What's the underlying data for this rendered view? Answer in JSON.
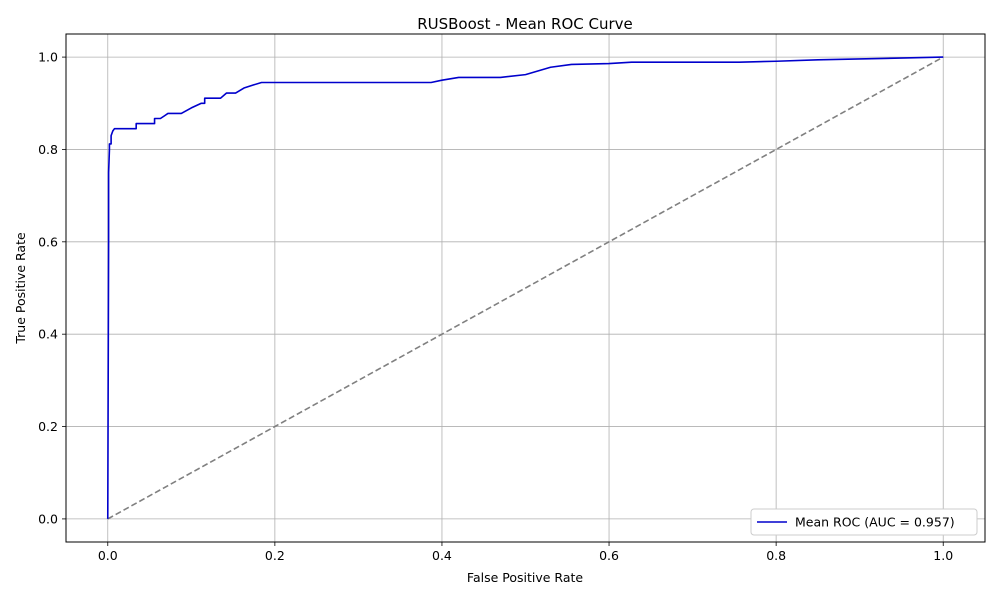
{
  "chart_data": {
    "type": "line",
    "title": "RUSBoost - Mean ROC Curve",
    "xlabel": "False Positive Rate",
    "ylabel": "True Positive Rate",
    "xlim": [
      -0.05,
      1.05
    ],
    "ylim": [
      -0.05,
      1.05
    ],
    "xticks": [
      0.0,
      0.2,
      0.4,
      0.6,
      0.8,
      1.0
    ],
    "yticks": [
      0.0,
      0.2,
      0.4,
      0.6,
      0.8,
      1.0
    ],
    "xtick_labels": [
      "0.0",
      "0.2",
      "0.4",
      "0.6",
      "0.8",
      "1.0"
    ],
    "ytick_labels": [
      "0.0",
      "0.2",
      "0.4",
      "0.6",
      "0.8",
      "1.0"
    ],
    "grid": true,
    "legend_position": "lower-right",
    "series": [
      {
        "name": "Mean ROC (AUC = 0.957)",
        "color": "#0000cc",
        "style": "solid",
        "x": [
          0.0,
          0.001,
          0.001,
          0.002,
          0.002,
          0.004,
          0.004,
          0.006,
          0.008,
          0.01,
          0.02,
          0.034,
          0.034,
          0.056,
          0.056,
          0.063,
          0.068,
          0.072,
          0.088,
          0.1,
          0.112,
          0.116,
          0.116,
          0.135,
          0.142,
          0.153,
          0.163,
          0.175,
          0.184,
          0.25,
          0.3,
          0.35,
          0.387,
          0.4,
          0.42,
          0.47,
          0.5,
          0.53,
          0.555,
          0.6,
          0.627,
          0.7,
          0.756,
          0.8,
          0.85,
          0.9,
          1.0
        ],
        "y": [
          0.0,
          0.6,
          0.75,
          0.8,
          0.812,
          0.812,
          0.83,
          0.84,
          0.845,
          0.845,
          0.845,
          0.845,
          0.856,
          0.856,
          0.867,
          0.867,
          0.873,
          0.878,
          0.878,
          0.89,
          0.9,
          0.9,
          0.911,
          0.911,
          0.922,
          0.922,
          0.933,
          0.94,
          0.945,
          0.945,
          0.945,
          0.945,
          0.945,
          0.95,
          0.956,
          0.956,
          0.962,
          0.978,
          0.984,
          0.986,
          0.989,
          0.989,
          0.989,
          0.991,
          0.994,
          0.996,
          1.0
        ]
      },
      {
        "name": "",
        "color": "#808080",
        "style": "dashed",
        "x": [
          0.0,
          1.0
        ],
        "y": [
          0.0,
          1.0
        ]
      }
    ],
    "legend": [
      {
        "label": "Mean ROC (AUC = 0.957)",
        "color": "#0000cc"
      }
    ]
  }
}
